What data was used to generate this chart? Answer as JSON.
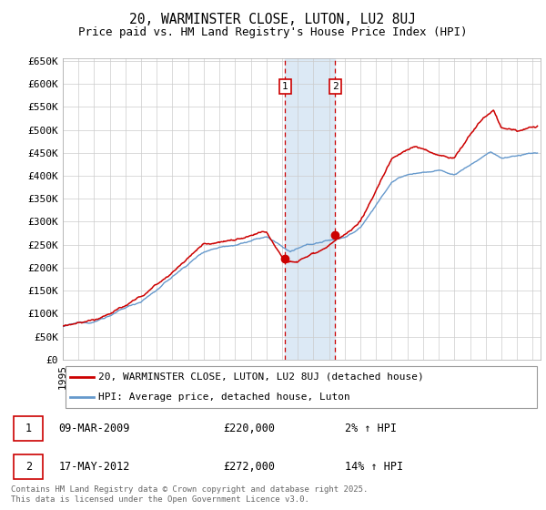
{
  "title": "20, WARMINSTER CLOSE, LUTON, LU2 8UJ",
  "subtitle": "Price paid vs. HM Land Registry's House Price Index (HPI)",
  "ylabel_ticks": [
    "£0",
    "£50K",
    "£100K",
    "£150K",
    "£200K",
    "£250K",
    "£300K",
    "£350K",
    "£400K",
    "£450K",
    "£500K",
    "£550K",
    "£600K",
    "£650K"
  ],
  "ytick_values": [
    0,
    50000,
    100000,
    150000,
    200000,
    250000,
    300000,
    350000,
    400000,
    450000,
    500000,
    550000,
    600000,
    650000
  ],
  "xmin": 1995.0,
  "xmax": 2025.5,
  "ymin": 0,
  "ymax": 650000,
  "sale1_date": 2009.19,
  "sale1_price": 220000,
  "sale1_label": "1",
  "sale1_pct": "2% ↑ HPI",
  "sale1_date_str": "09-MAR-2009",
  "sale2_date": 2012.38,
  "sale2_price": 272000,
  "sale2_label": "2",
  "sale2_pct": "14% ↑ HPI",
  "sale2_date_str": "17-MAY-2012",
  "line1_color": "#cc0000",
  "line2_color": "#6699cc",
  "grid_color": "#cccccc",
  "bg_color": "#ffffff",
  "highlight_color": "#dce9f5",
  "dashed_color": "#cc0000",
  "legend1_text": "20, WARMINSTER CLOSE, LUTON, LU2 8UJ (detached house)",
  "legend2_text": "HPI: Average price, detached house, Luton",
  "footer": "Contains HM Land Registry data © Crown copyright and database right 2025.\nThis data is licensed under the Open Government Licence v3.0.",
  "title_fontsize": 10.5,
  "subtitle_fontsize": 9,
  "tick_fontsize": 8,
  "legend_fontsize": 8,
  "footer_fontsize": 6.5
}
